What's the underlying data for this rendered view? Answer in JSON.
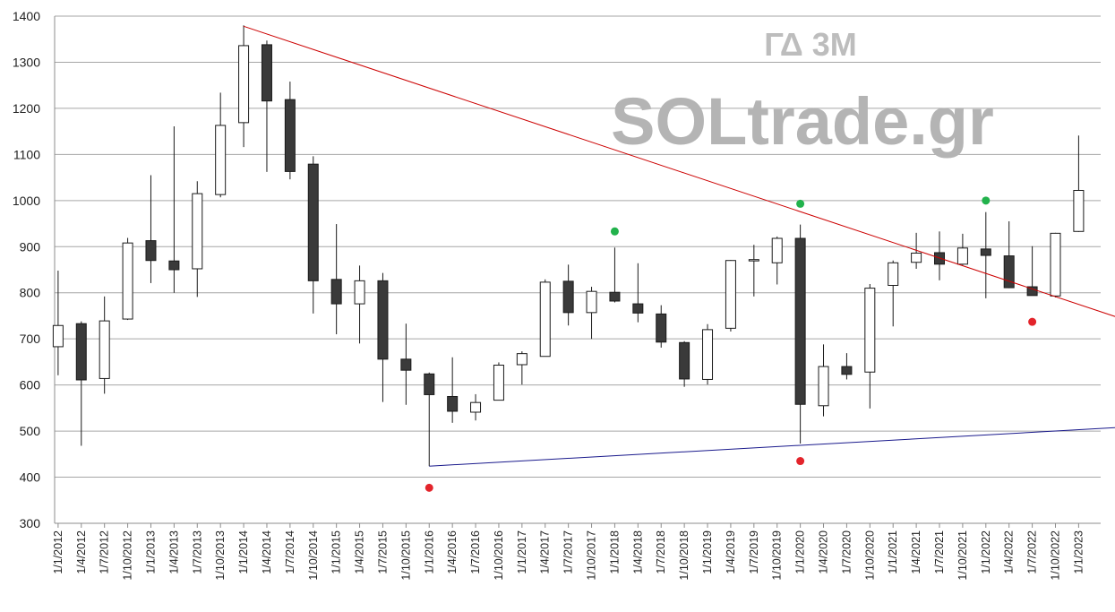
{
  "chart_data": {
    "type": "candlestick",
    "title": "ΓΔ 3M",
    "watermark": "SOLtrade.gr",
    "ylim": [
      300,
      1400
    ],
    "yticks": [
      300,
      400,
      500,
      600,
      700,
      800,
      900,
      1000,
      1100,
      1200,
      1300,
      1400
    ],
    "grid": true,
    "categories": [
      "1/1/2012",
      "1/4/2012",
      "1/7/2012",
      "1/10/2012",
      "1/1/2013",
      "1/4/2013",
      "1/7/2013",
      "1/10/2013",
      "1/1/2014",
      "1/4/2014",
      "1/7/2014",
      "1/10/2014",
      "1/1/2015",
      "1/4/2015",
      "1/7/2015",
      "1/10/2015",
      "1/1/2016",
      "1/4/2016",
      "1/7/2016",
      "1/10/2016",
      "1/1/2017",
      "1/4/2017",
      "1/7/2017",
      "1/10/2017",
      "1/1/2018",
      "1/4/2018",
      "1/7/2018",
      "1/10/2018",
      "1/1/2019",
      "1/4/2019",
      "1/7/2019",
      "1/10/2019",
      "1/1/2020",
      "1/4/2020",
      "1/7/2020",
      "1/10/2020",
      "1/1/2021",
      "1/4/2021",
      "1/7/2021",
      "1/10/2021",
      "1/1/2022",
      "1/4/2022",
      "1/7/2022",
      "1/10/2022",
      "1/1/2023"
    ],
    "candles": [
      {
        "open": 683,
        "high": 848,
        "low": 621,
        "close": 729
      },
      {
        "open": 733,
        "high": 738,
        "low": 468,
        "close": 611
      },
      {
        "open": 614,
        "high": 792,
        "low": 581,
        "close": 739
      },
      {
        "open": 743,
        "high": 919,
        "low": 741,
        "close": 908
      },
      {
        "open": 913,
        "high": 1055,
        "low": 821,
        "close": 870
      },
      {
        "open": 869,
        "high": 1161,
        "low": 800,
        "close": 850
      },
      {
        "open": 852,
        "high": 1042,
        "low": 791,
        "close": 1015
      },
      {
        "open": 1013,
        "high": 1234,
        "low": 1007,
        "close": 1163
      },
      {
        "open": 1169,
        "high": 1380,
        "low": 1116,
        "close": 1336
      },
      {
        "open": 1338,
        "high": 1347,
        "low": 1062,
        "close": 1216
      },
      {
        "open": 1219,
        "high": 1258,
        "low": 1046,
        "close": 1063
      },
      {
        "open": 1079,
        "high": 1096,
        "low": 755,
        "close": 826
      },
      {
        "open": 829,
        "high": 949,
        "low": 710,
        "close": 776
      },
      {
        "open": 776,
        "high": 859,
        "low": 690,
        "close": 826
      },
      {
        "open": 826,
        "high": 843,
        "low": 563,
        "close": 656
      },
      {
        "open": 656,
        "high": 733,
        "low": 557,
        "close": 632
      },
      {
        "open": 624,
        "high": 627,
        "low": 424,
        "close": 579
      },
      {
        "open": 575,
        "high": 660,
        "low": 518,
        "close": 543
      },
      {
        "open": 541,
        "high": 580,
        "low": 523,
        "close": 562
      },
      {
        "open": 567,
        "high": 649,
        "low": 567,
        "close": 643
      },
      {
        "open": 644,
        "high": 673,
        "low": 601,
        "close": 668
      },
      {
        "open": 662,
        "high": 829,
        "low": 662,
        "close": 823
      },
      {
        "open": 825,
        "high": 861,
        "low": 729,
        "close": 757
      },
      {
        "open": 757,
        "high": 813,
        "low": 700,
        "close": 803
      },
      {
        "open": 801,
        "high": 898,
        "low": 779,
        "close": 782
      },
      {
        "open": 776,
        "high": 864,
        "low": 736,
        "close": 756
      },
      {
        "open": 754,
        "high": 773,
        "low": 681,
        "close": 693
      },
      {
        "open": 692,
        "high": 695,
        "low": 596,
        "close": 613
      },
      {
        "open": 612,
        "high": 732,
        "low": 601,
        "close": 720
      },
      {
        "open": 723,
        "high": 871,
        "low": 716,
        "close": 870
      },
      {
        "open": 871,
        "high": 904,
        "low": 792,
        "close": 872
      },
      {
        "open": 865,
        "high": 922,
        "low": 818,
        "close": 918
      },
      {
        "open": 918,
        "high": 948,
        "low": 473,
        "close": 558
      },
      {
        "open": 555,
        "high": 688,
        "low": 532,
        "close": 640
      },
      {
        "open": 640,
        "high": 669,
        "low": 612,
        "close": 623
      },
      {
        "open": 628,
        "high": 819,
        "low": 549,
        "close": 810
      },
      {
        "open": 816,
        "high": 870,
        "low": 727,
        "close": 865
      },
      {
        "open": 866,
        "high": 930,
        "low": 852,
        "close": 886
      },
      {
        "open": 887,
        "high": 933,
        "low": 827,
        "close": 862
      },
      {
        "open": 862,
        "high": 928,
        "low": 860,
        "close": 897
      },
      {
        "open": 895,
        "high": 975,
        "low": 788,
        "close": 881
      },
      {
        "open": 880,
        "high": 955,
        "low": 810,
        "close": 811
      },
      {
        "open": 813,
        "high": 901,
        "low": 795,
        "close": 794
      },
      {
        "open": 793,
        "high": 930,
        "low": 790,
        "close": 929
      },
      {
        "open": 933,
        "high": 1141,
        "low": 932,
        "close": 1022
      }
    ],
    "trendlines": [
      {
        "color": "#cc0000",
        "from": {
          "x": "1/1/2014",
          "y": 1378
        },
        "to_slot": 46.5,
        "to_y": 733
      },
      {
        "color": "#1a1a8c",
        "from": {
          "x": "1/1/2016",
          "y": 424
        },
        "to_slot": 46.5,
        "to_y": 510
      }
    ],
    "markers": [
      {
        "x": "1/1/2016",
        "y": 377,
        "color": "#e3242b"
      },
      {
        "x": "1/1/2018",
        "y": 933,
        "color": "#22b24c"
      },
      {
        "x": "1/1/2020",
        "y": 993,
        "color": "#22b24c"
      },
      {
        "x": "1/1/2020",
        "y": 435,
        "color": "#e3242b"
      },
      {
        "x": "1/1/2022",
        "y": 1000,
        "color": "#22b24c"
      },
      {
        "x": "1/7/2022",
        "y": 737,
        "color": "#e3242b"
      }
    ],
    "colors": {
      "up_fill": "#ffffff",
      "down_fill": "#3a3a3a",
      "candle_stroke": "#1a1a1a",
      "grid": "#a6a6a6",
      "axis": "#8c8c8c"
    }
  }
}
